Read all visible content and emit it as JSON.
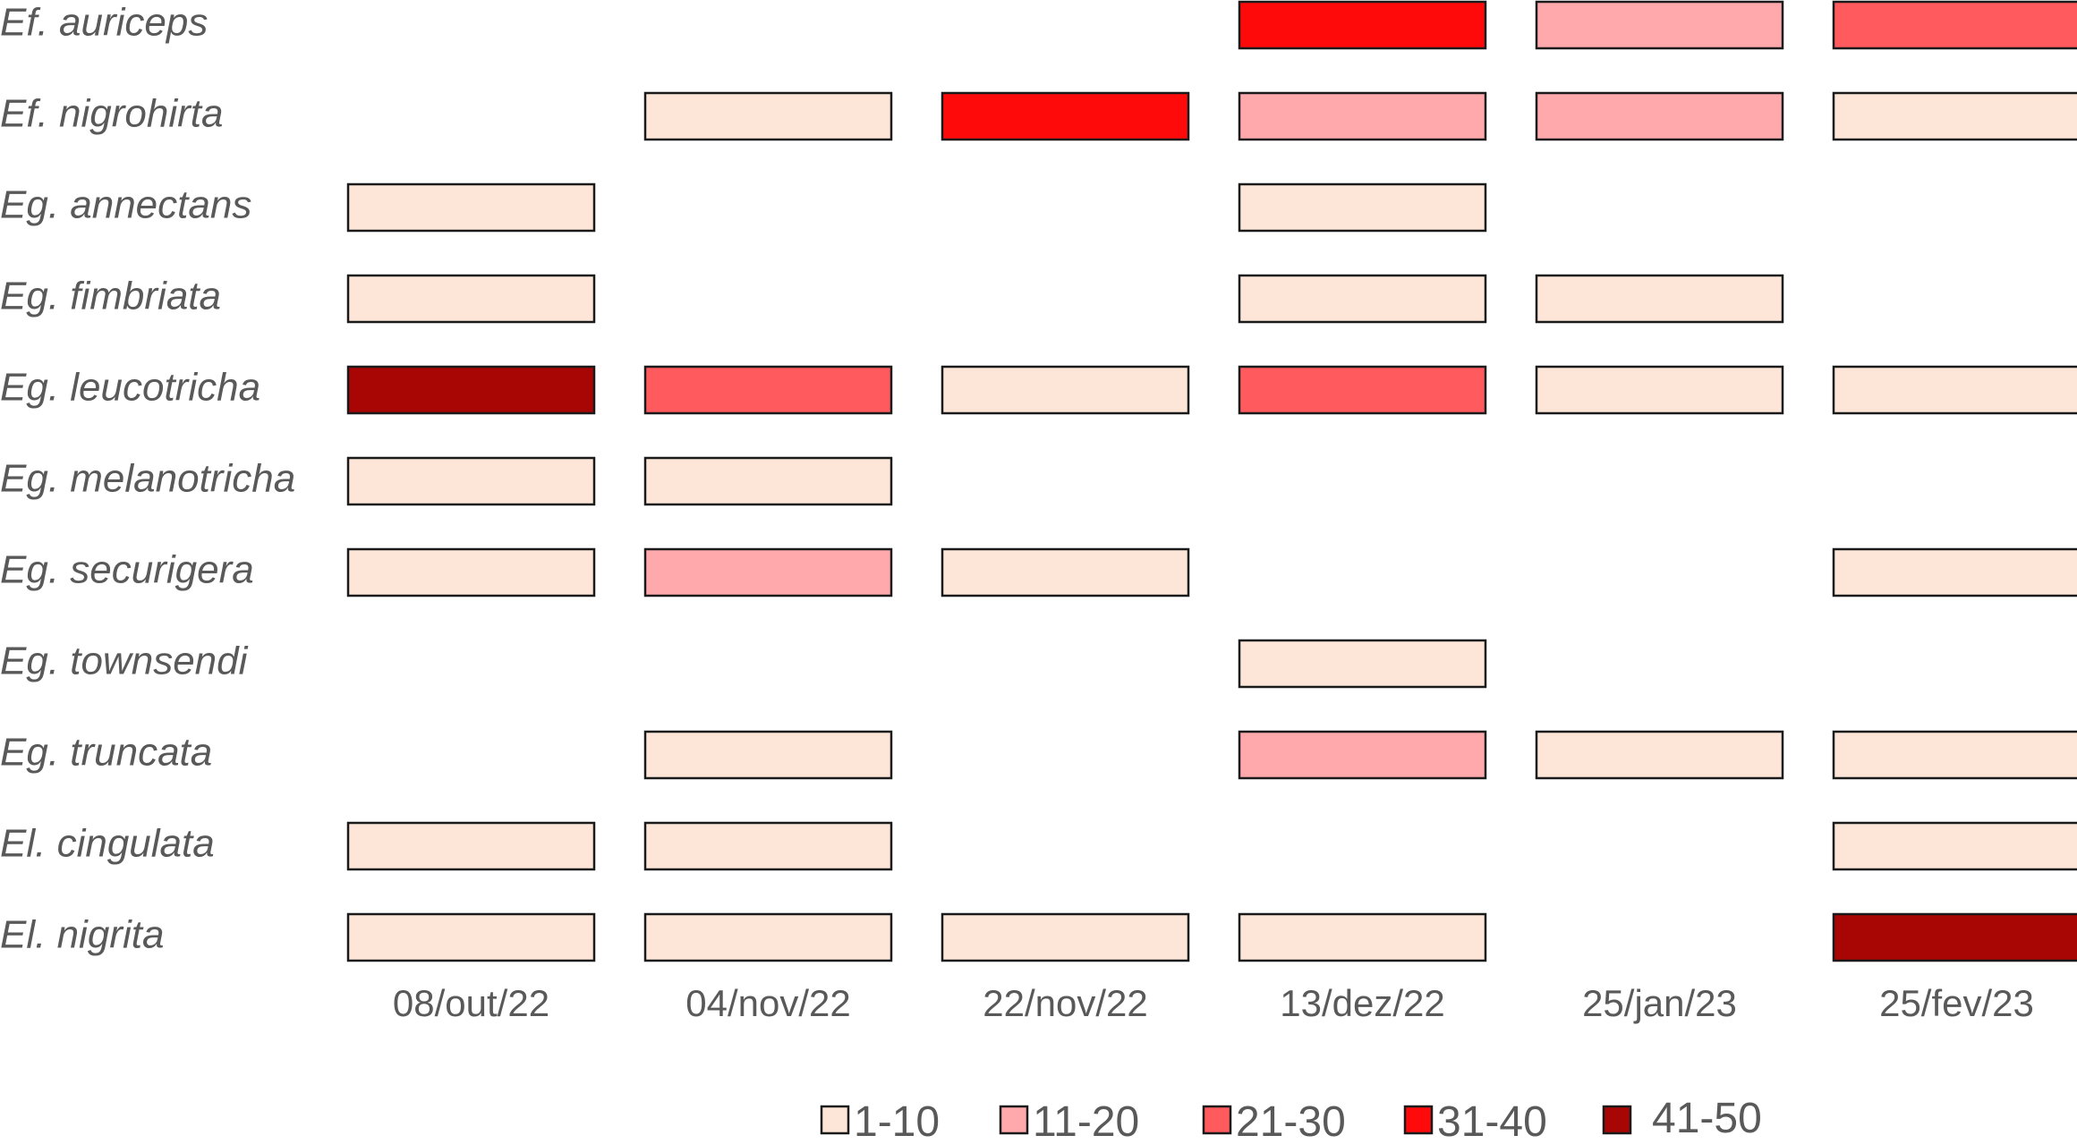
{
  "chart_data": {
    "type": "heatmap",
    "title": "",
    "xlabel": "",
    "ylabel": "",
    "rows": [
      "Ef. auriceps",
      "Ef. nigrohirta",
      "Eg. annectans",
      "Eg. fimbriata",
      "Eg. leucotricha",
      "Eg. melanotricha",
      "Eg. securigera",
      "Eg. townsendi",
      "Eg. truncata",
      "El. cingulata",
      "El. nigrita"
    ],
    "columns": [
      "08/out/22",
      "04/nov/22",
      "22/nov/22",
      "13/dez/22",
      "25/jan/23",
      "25/fev/23"
    ],
    "cells": [
      [
        null,
        null,
        null,
        "31-40",
        "11-20",
        "21-30"
      ],
      [
        null,
        "1-10",
        "31-40",
        "11-20",
        "11-20",
        "1-10"
      ],
      [
        "1-10",
        null,
        null,
        "1-10",
        null,
        null
      ],
      [
        "1-10",
        null,
        null,
        "1-10",
        "1-10",
        null
      ],
      [
        "41-50",
        "21-30",
        "1-10",
        "21-30",
        "1-10",
        "1-10"
      ],
      [
        "1-10",
        "1-10",
        null,
        null,
        null,
        null
      ],
      [
        "1-10",
        "11-20",
        "1-10",
        null,
        null,
        "1-10"
      ],
      [
        null,
        null,
        null,
        "1-10",
        null,
        null
      ],
      [
        null,
        "1-10",
        null,
        "11-20",
        "1-10",
        "1-10"
      ],
      [
        "1-10",
        "1-10",
        null,
        null,
        null,
        "1-10"
      ],
      [
        "1-10",
        "1-10",
        "1-10",
        "1-10",
        null,
        "41-50"
      ]
    ],
    "legend": {
      "placement": "bottom",
      "items": [
        {
          "label": "1-10",
          "color": "#FDE6D8"
        },
        {
          "label": "11-20",
          "color": "#FFA9AD"
        },
        {
          "label": "21-30",
          "color": "#FF5B5E"
        },
        {
          "label": "31-40",
          "color": "#FF0A0A"
        },
        {
          "label": "41-50",
          "color": "#A80505"
        }
      ]
    }
  },
  "colors": {
    "text": "#595959",
    "border": "#1a1a1a",
    "background": "#ffffff"
  }
}
